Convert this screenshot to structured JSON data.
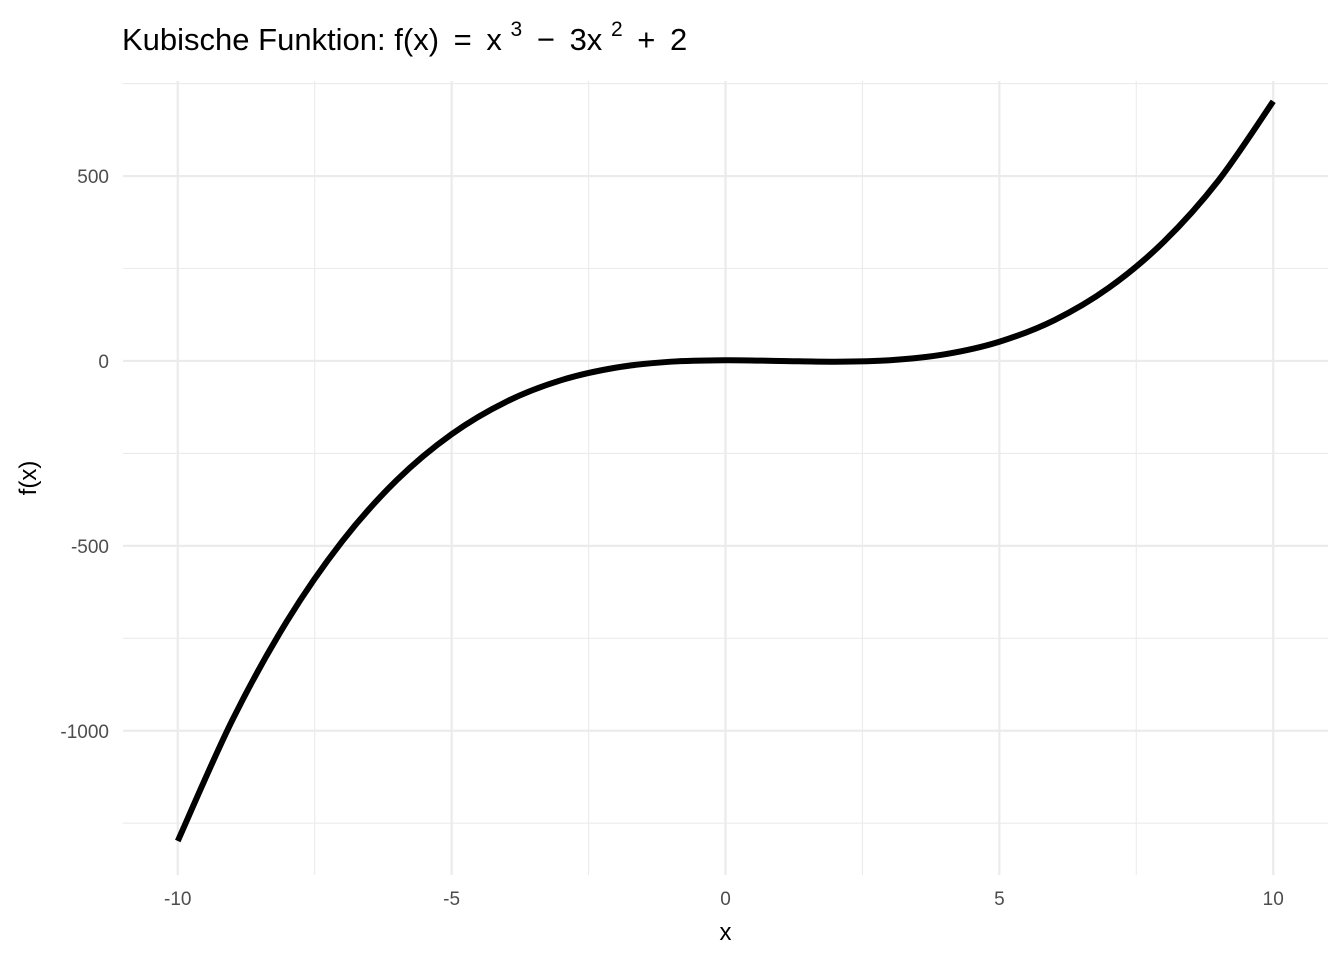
{
  "chart_data": {
    "type": "line",
    "title": {
      "prefix": "Kubische Funktion:  f(x)",
      "eq": "=",
      "x1": "x",
      "exp1": "3",
      "minus": "−",
      "term2": "3x",
      "exp2": "2",
      "plus": "+",
      "const": "2"
    },
    "xlabel": "x",
    "ylabel": "f(x)",
    "xlim": [
      -11,
      11
    ],
    "ylim": [
      -1390,
      757
    ],
    "xticks": [
      -10,
      -5,
      0,
      5,
      10
    ],
    "xtick_labels": [
      "-10",
      "-5",
      "0",
      "5",
      "10"
    ],
    "yticks": [
      -1000,
      -500,
      0,
      500
    ],
    "ytick_labels": [
      "-1000",
      "-500",
      "0",
      "500"
    ],
    "grid": true,
    "series": [
      {
        "color": "#000000",
        "x": [
          -10,
          -9,
          -8,
          -7,
          -6,
          -5,
          -4,
          -3,
          -2,
          -1,
          0,
          1,
          2,
          3,
          4,
          5,
          6,
          7,
          8,
          9,
          10
        ],
        "y": [
          -1298,
          -970,
          -702,
          -488,
          -322,
          -198,
          -110,
          -52,
          -18,
          -2,
          2,
          0,
          -2,
          2,
          18,
          52,
          110,
          198,
          322,
          488,
          702
        ]
      }
    ]
  }
}
